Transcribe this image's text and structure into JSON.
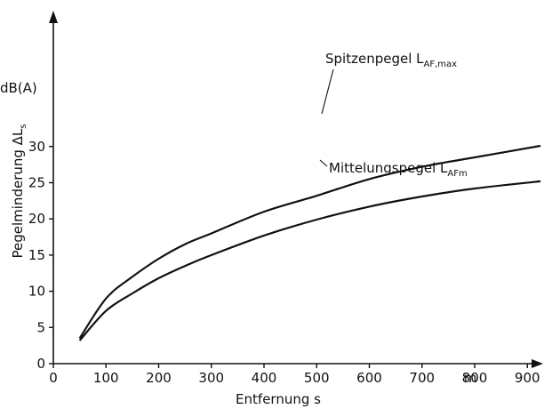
{
  "chart_data": {
    "type": "line",
    "xlabel": "Entfernung s",
    "ylabel_main": "Pegelminderung ΔL",
    "ylabel_sub": "s",
    "y_unit": "dB(A)",
    "x_unit_label": "m",
    "xlim": [
      0,
      960
    ],
    "ylim": [
      0,
      35
    ],
    "x_ticks": [
      0,
      100,
      200,
      300,
      400,
      500,
      600,
      700,
      800,
      900
    ],
    "y_ticks": [
      0,
      5,
      10,
      15,
      20,
      25,
      30
    ],
    "grid": false,
    "series": [
      {
        "name_main": "Spitzenpegel L",
        "name_sub": "AF,max",
        "x": [
          50,
          100,
          150,
          200,
          250,
          300,
          400,
          500,
          600,
          700,
          800,
          925
        ],
        "y": [
          3.5,
          9.0,
          12.0,
          14.5,
          16.5,
          18.0,
          21.0,
          23.2,
          25.5,
          27.2,
          28.5,
          30.1
        ]
      },
      {
        "name_main": "Mittelungspegel L",
        "name_sub": "AFm",
        "x": [
          50,
          100,
          150,
          200,
          250,
          300,
          400,
          500,
          600,
          700,
          800,
          925
        ],
        "y": [
          3.2,
          7.3,
          9.7,
          11.8,
          13.5,
          15.0,
          17.7,
          19.9,
          21.7,
          23.1,
          24.2,
          25.2
        ]
      }
    ]
  }
}
